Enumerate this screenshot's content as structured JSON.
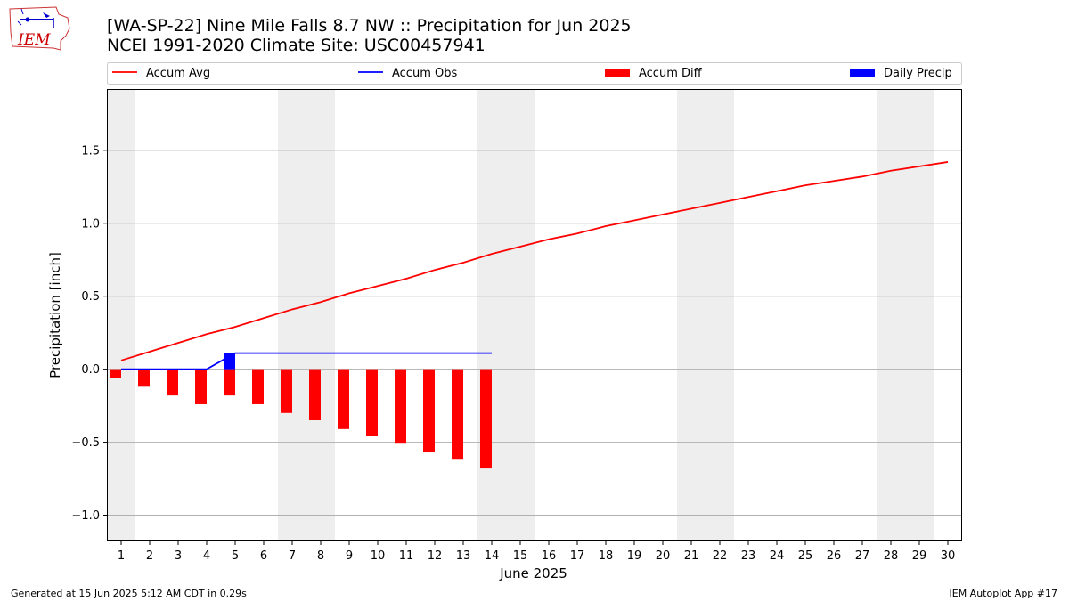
{
  "header": {
    "title_line1": "[WA-SP-22] Nine Mile Falls 8.7 NW :: Precipitation for Jun 2025",
    "title_line2": "NCEI 1991-2020 Climate Site: USC00457941",
    "logo_text": "IEM"
  },
  "footer": {
    "generated": "Generated at 15 Jun 2025 5:12 AM CDT in 0.29s",
    "app": "IEM Autoplot App #17"
  },
  "chart_data": {
    "type": "bar",
    "xlabel": "June 2025",
    "ylabel": "Precipitation [inch]",
    "xlim": [
      0.5,
      30.5
    ],
    "ylim": [
      -1.18,
      1.92
    ],
    "x_ticks": [
      1,
      2,
      3,
      4,
      5,
      6,
      7,
      8,
      9,
      10,
      11,
      12,
      13,
      14,
      15,
      16,
      17,
      18,
      19,
      20,
      21,
      22,
      23,
      24,
      25,
      26,
      27,
      28,
      29,
      30
    ],
    "y_ticks": [
      -1.0,
      -0.5,
      0.0,
      0.5,
      1.0,
      1.5
    ],
    "y_tick_labels": [
      "−1.0",
      "−0.5",
      "0.0",
      "0.5",
      "1.0",
      "1.5"
    ],
    "grid": "horizontal",
    "legend_position": "top",
    "weekend_shading": [
      [
        0.5,
        1.5
      ],
      [
        6.5,
        8.5
      ],
      [
        13.5,
        15.5
      ],
      [
        20.5,
        22.5
      ],
      [
        27.5,
        29.5
      ]
    ],
    "series": [
      {
        "name": "Accum Avg",
        "kind": "line",
        "color": "#ff0000",
        "x": [
          1,
          2,
          3,
          4,
          5,
          6,
          7,
          8,
          9,
          10,
          11,
          12,
          13,
          14,
          15,
          16,
          17,
          18,
          19,
          20,
          21,
          22,
          23,
          24,
          25,
          26,
          27,
          28,
          29,
          30
        ],
        "values": [
          0.06,
          0.12,
          0.18,
          0.24,
          0.29,
          0.35,
          0.41,
          0.46,
          0.52,
          0.57,
          0.62,
          0.68,
          0.73,
          0.79,
          0.84,
          0.89,
          0.93,
          0.98,
          1.02,
          1.06,
          1.1,
          1.14,
          1.18,
          1.22,
          1.26,
          1.29,
          1.32,
          1.36,
          1.39,
          1.42
        ]
      },
      {
        "name": "Accum Obs",
        "kind": "line",
        "color": "#0000ff",
        "x": [
          1,
          2,
          3,
          4,
          5,
          6,
          7,
          8,
          9,
          10,
          11,
          12,
          13,
          14
        ],
        "values": [
          0.0,
          0.0,
          0.0,
          0.0,
          0.11,
          0.11,
          0.11,
          0.11,
          0.11,
          0.11,
          0.11,
          0.11,
          0.11,
          0.11
        ]
      },
      {
        "name": "Accum Diff",
        "kind": "bar",
        "color": "#ff0000",
        "x": [
          1,
          2,
          3,
          4,
          5,
          6,
          7,
          8,
          9,
          10,
          11,
          12,
          13,
          14
        ],
        "values": [
          -0.06,
          -0.12,
          -0.18,
          -0.24,
          -0.18,
          -0.24,
          -0.3,
          -0.35,
          -0.41,
          -0.46,
          -0.51,
          -0.57,
          -0.62,
          -0.68
        ]
      },
      {
        "name": "Daily Precip",
        "kind": "bar",
        "color": "#0000ff",
        "x": [
          5
        ],
        "values": [
          0.11
        ]
      }
    ]
  }
}
